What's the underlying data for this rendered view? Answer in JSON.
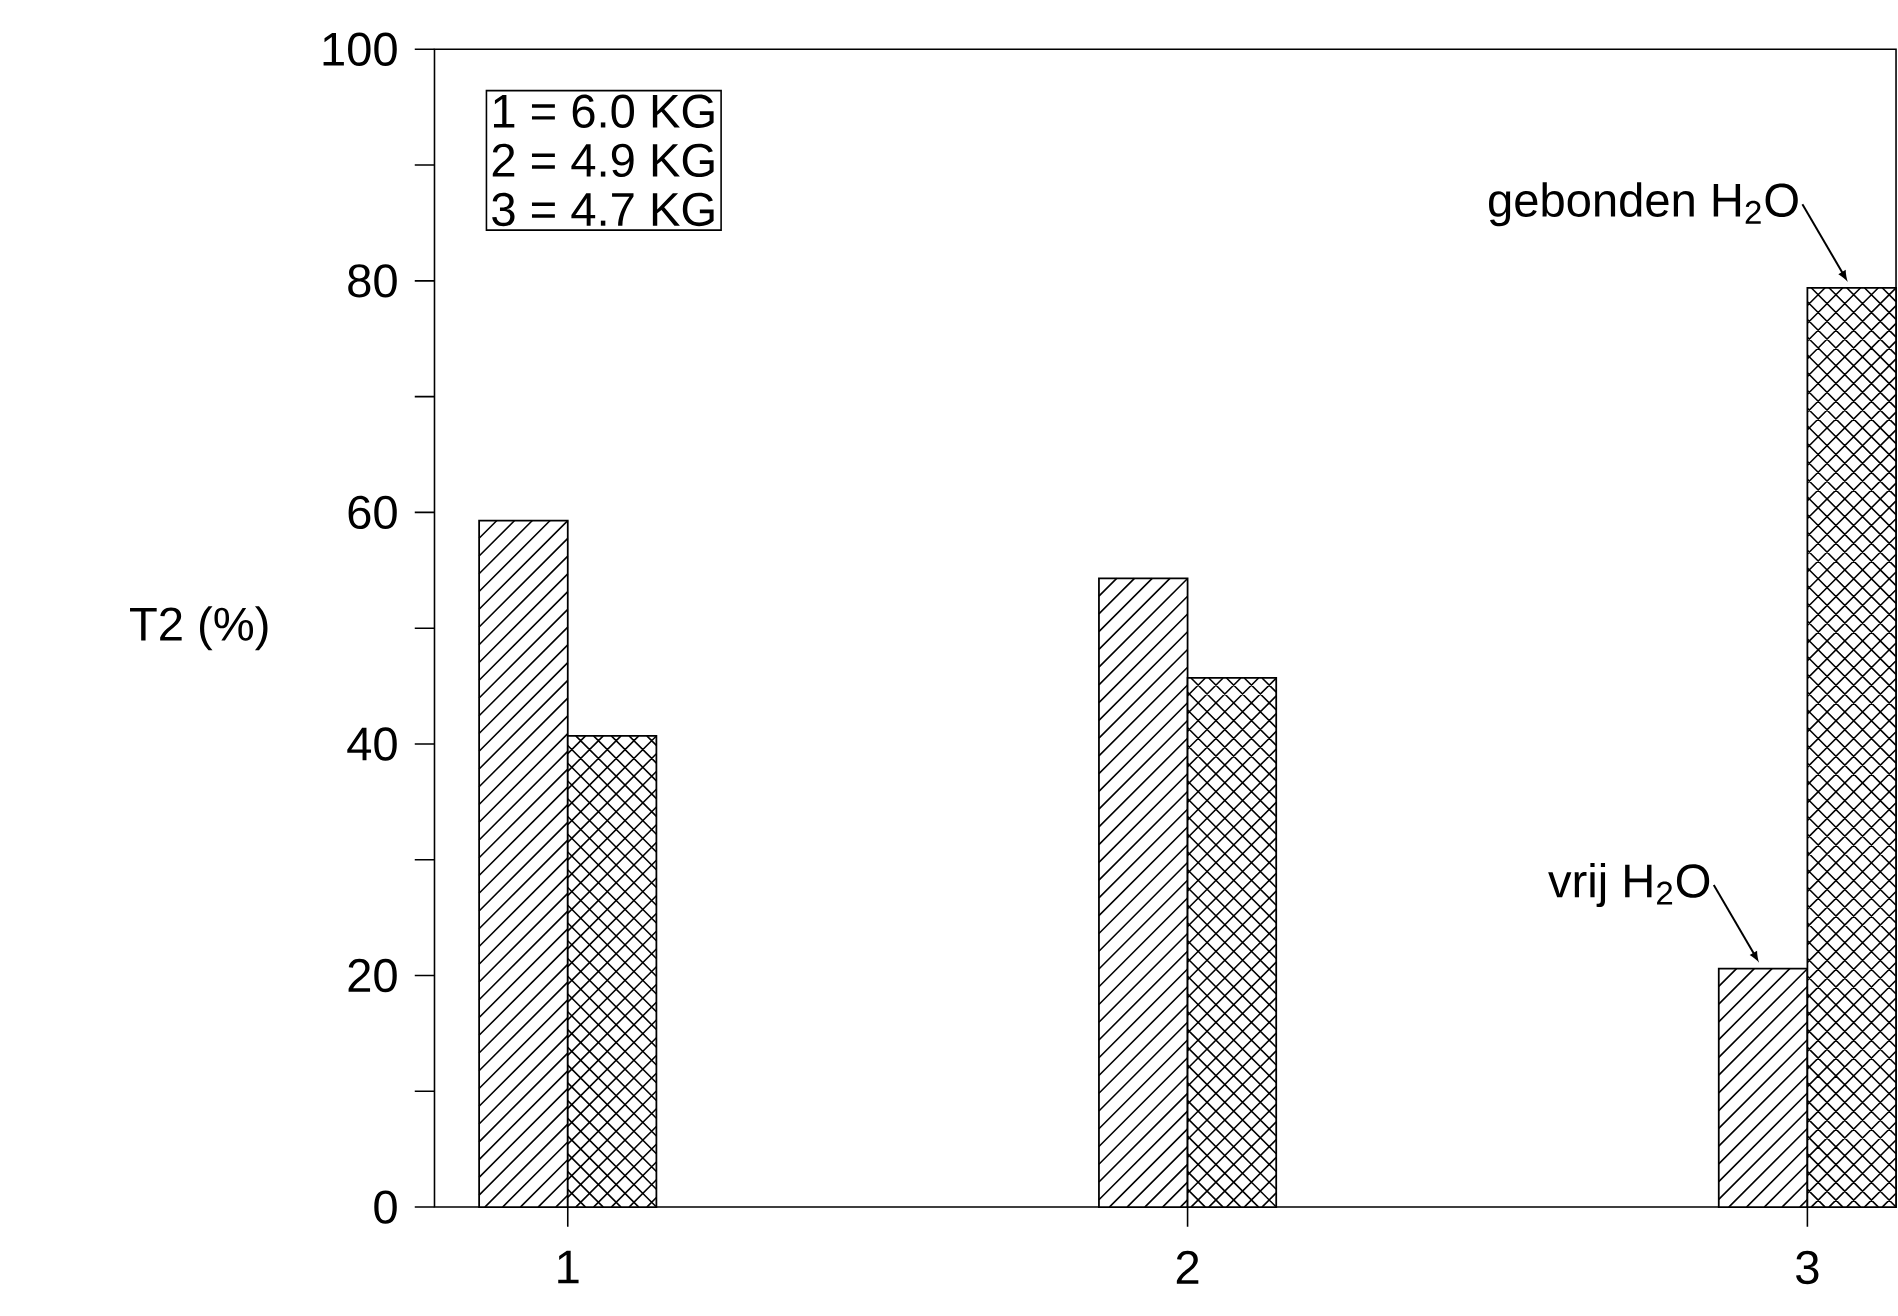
{
  "chart_data": {
    "type": "bar",
    "ylabel": "T2 (%)",
    "categories": [
      "1",
      "2",
      "3"
    ],
    "series": [
      {
        "color": "#000000",
        "values": [
          59.3,
          54.3,
          20.6
        ]
      },
      {
        "color": "#000000",
        "values": [
          40.7,
          45.7,
          79.4
        ]
      }
    ],
    "ylim": [
      0,
      100
    ],
    "yticks": [
      0,
      {
        "value": 10,
        "label": null
      },
      20,
      {
        "value": 30,
        "label": null
      },
      40,
      {
        "value": 50,
        "label": null
      },
      60,
      {
        "value": 70,
        "label": null
      },
      80,
      {
        "value": 90,
        "label": null
      },
      100
    ],
    "grid": false,
    "annotations": [
      "1 = 6.0 KG",
      "2 = 4.9 KG",
      "3 = 4.7 KG",
      {
        "text": "gebonden H$_{2}$O",
        "x": "3",
        "y": 79.4
      },
      {
        "text": "vrij H$_{2}$O",
        "x": "3",
        "y": 20.6
      }
    ]
  }
}
